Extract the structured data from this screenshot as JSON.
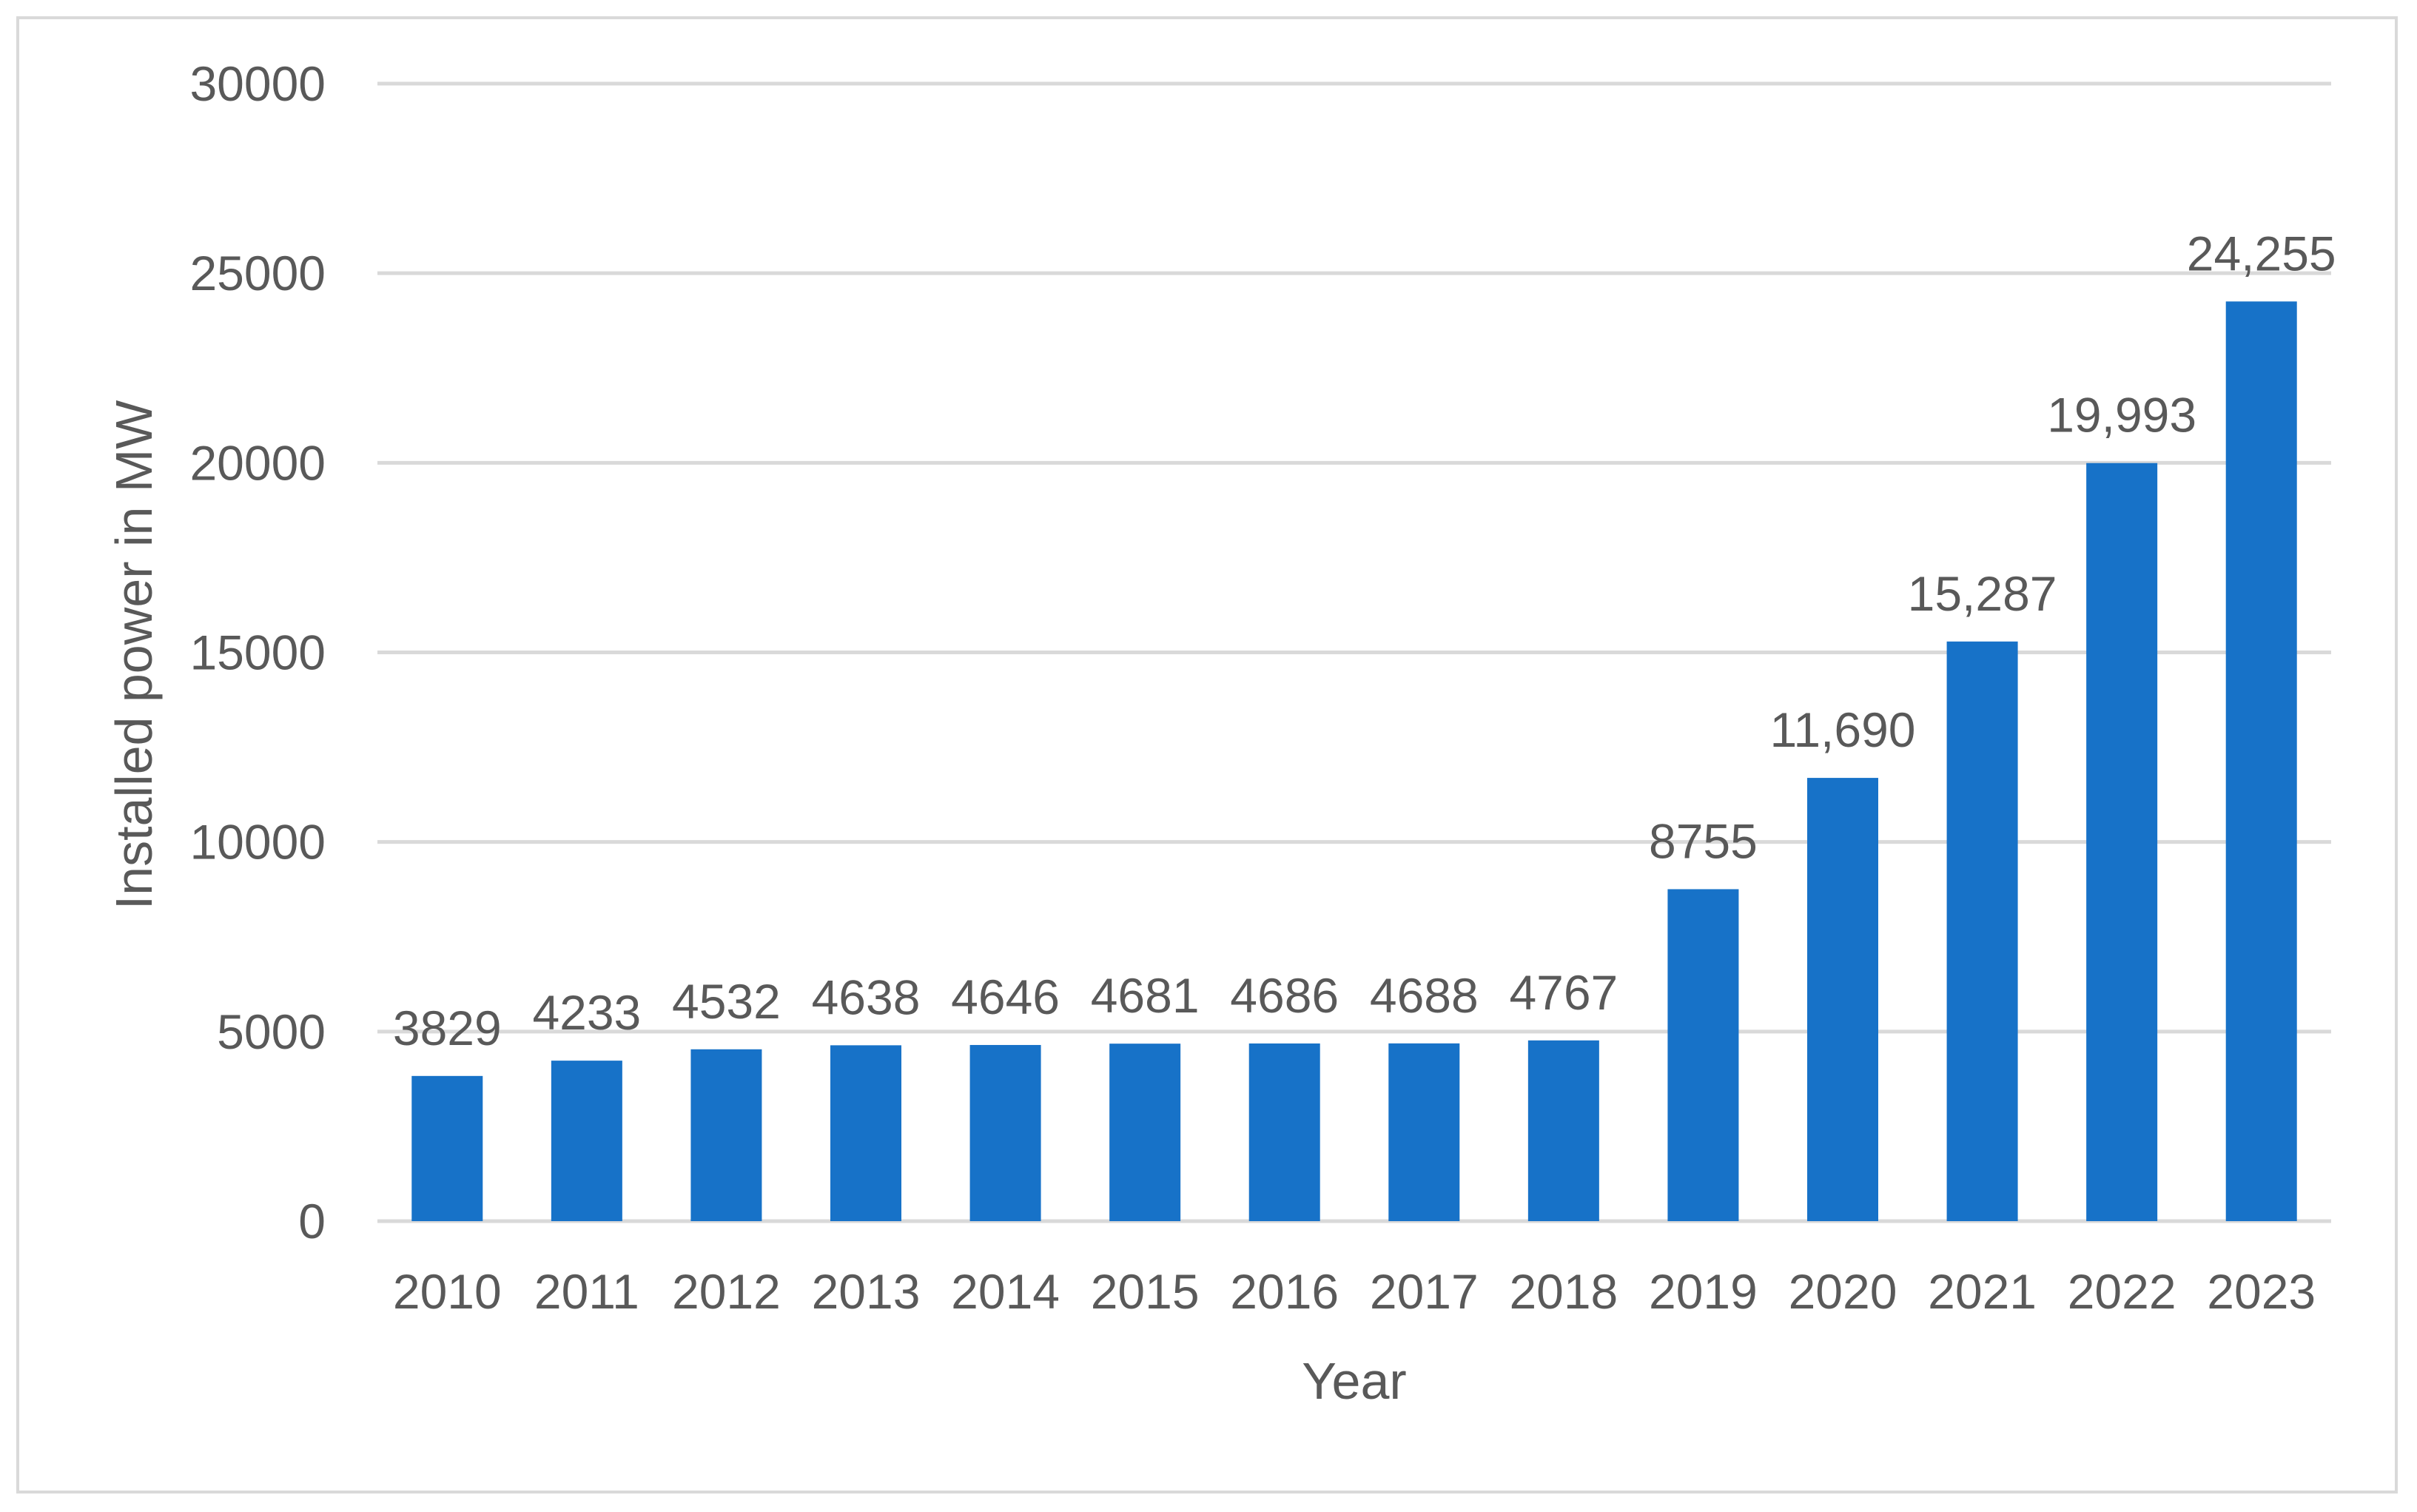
{
  "chart_data": {
    "type": "bar",
    "title": "",
    "xlabel": "Year",
    "ylabel": "Installed power in MW",
    "categories": [
      "2010",
      "2011",
      "2012",
      "2013",
      "2014",
      "2015",
      "2016",
      "2017",
      "2018",
      "2019",
      "2020",
      "2021",
      "2022",
      "2023"
    ],
    "values": [
      3829,
      4233,
      4532,
      4638,
      4646,
      4681,
      4686,
      4688,
      4767,
      8755,
      11690,
      15287,
      19993,
      24255
    ],
    "data_labels": [
      "3829",
      "4233",
      "4532",
      "4638",
      "4646",
      "4681",
      "4686",
      "4688",
      "4767",
      "8755",
      "11,690",
      "15,287",
      "19,993",
      "24,255"
    ],
    "ylim": [
      0,
      30000
    ],
    "yticks": [
      "0",
      "5000",
      "10000",
      "15000",
      "20000",
      "25000",
      "30000"
    ],
    "ytick_values": [
      0,
      5000,
      10000,
      15000,
      20000,
      25000,
      30000
    ],
    "grid": true,
    "legend": "none",
    "colors": {
      "bar": "#1772C8",
      "gridline": "#D9D9D9",
      "text": "#595959",
      "border": "#D9D9D9"
    }
  }
}
